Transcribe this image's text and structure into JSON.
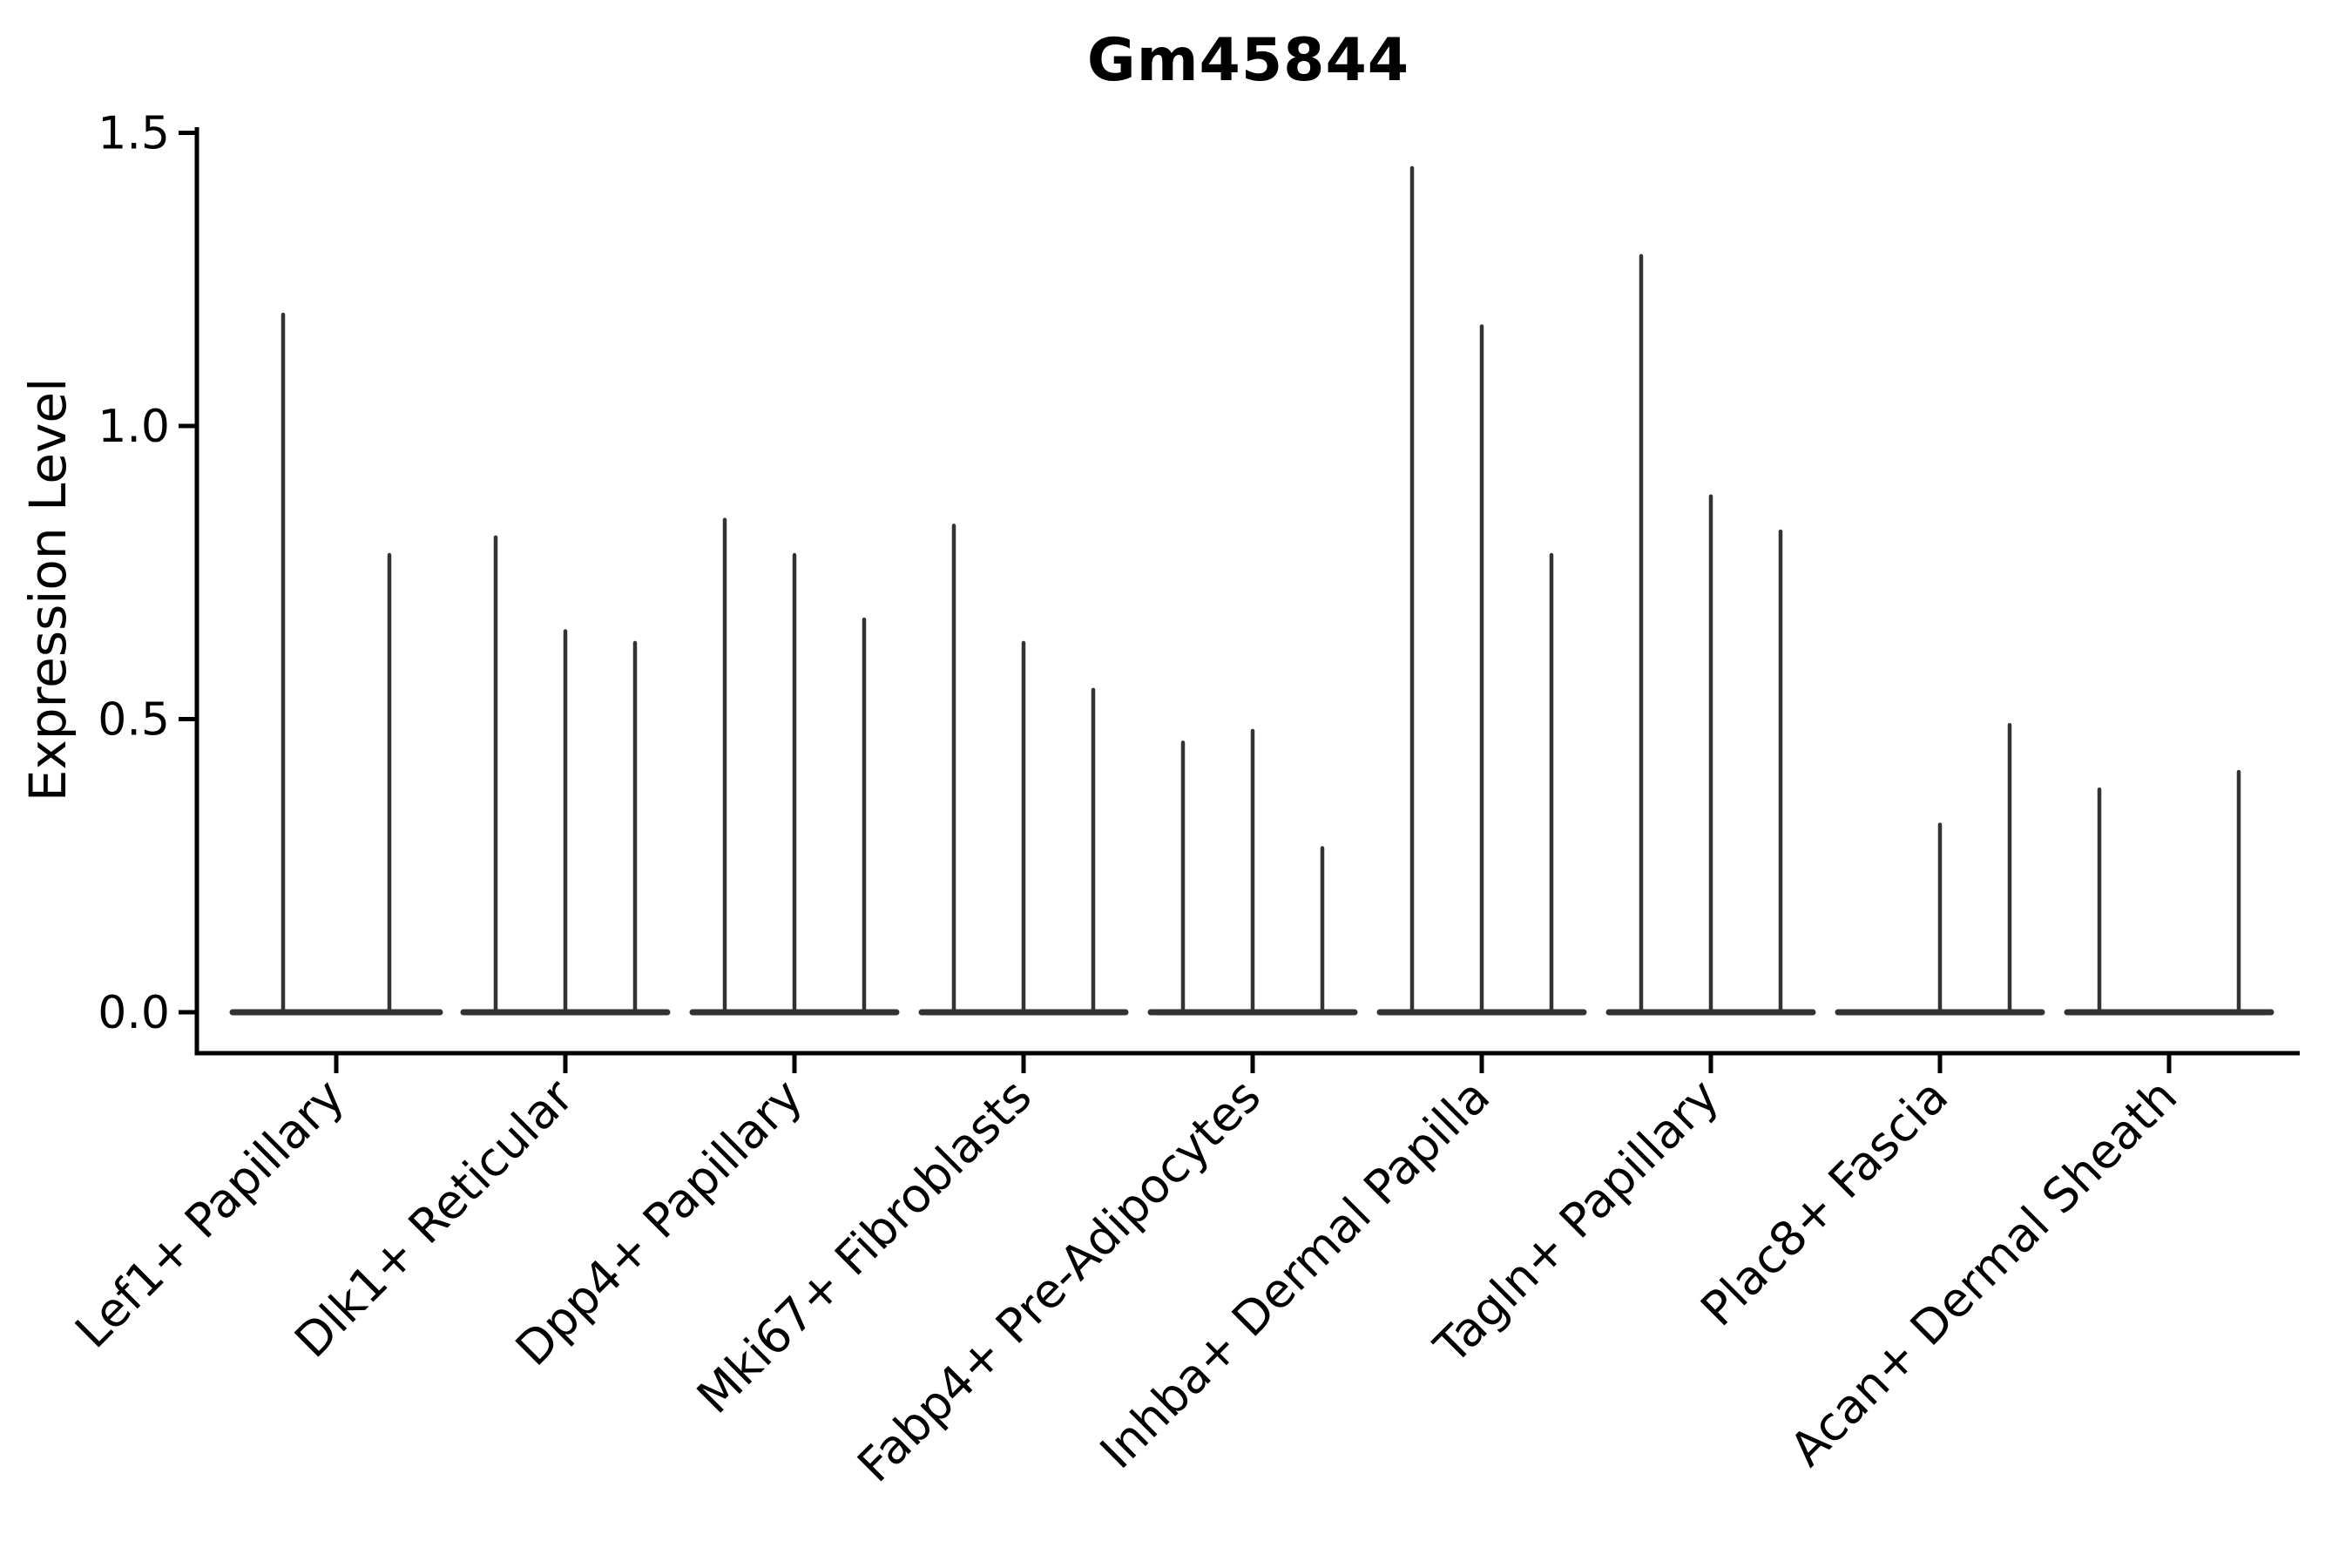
{
  "title": "Gm45844",
  "ylabel": "Expression Level",
  "colors": {
    "background": "#ffffff",
    "axis": "#000000",
    "text": "#000000",
    "violin": "#333333"
  },
  "chart_data": {
    "type": "violin",
    "title": "Gm45844",
    "xlabel": "",
    "ylabel": "Expression Level",
    "ylim": [
      -0.07,
      1.51
    ],
    "yticks": [
      0,
      0.5,
      1.0,
      1.5
    ],
    "ytick_labels": [
      "0.0",
      "0.5",
      "1.0",
      "1.5"
    ],
    "grid": false,
    "legend": false,
    "description": "Needle-thin violin plot of gene expression per fibroblast cluster; each category contains 2-3 violins collapsed to a baseline bulge at 0 with a thin spike to the maximum expression value.",
    "categories": [
      "Lef1+ Papillary",
      "Dlk1+ Reticular",
      "Dpp4+ Papillary",
      "Mki67+ Fibroblasts",
      "Fabp4+ Pre-Adipocytes",
      "Inhba+ Dermal Papilla",
      "Tagln+ Papillary",
      "Plac8+ Fascia",
      "Acan+ Dermal Sheath"
    ],
    "groups": [
      {
        "label": "Lef1+ Papillary",
        "violin_maxima": [
          1.19,
          0.78
        ]
      },
      {
        "label": "Dlk1+ Reticular",
        "violin_maxima": [
          0.81,
          0.65,
          0.63
        ]
      },
      {
        "label": "Dpp4+ Papillary",
        "violin_maxima": [
          0.84,
          0.78,
          0.67
        ]
      },
      {
        "label": "Mki67+ Fibroblasts",
        "violin_maxima": [
          0.83,
          0.63,
          0.55
        ]
      },
      {
        "label": "Fabp4+ Pre-Adipocytes",
        "violin_maxima": [
          0.46,
          0.48,
          0.28
        ]
      },
      {
        "label": "Inhba+ Dermal Papilla",
        "violin_maxima": [
          1.44,
          1.17,
          0.78
        ]
      },
      {
        "label": "Tagln+ Papillary",
        "violin_maxima": [
          1.29,
          0.88,
          0.82
        ]
      },
      {
        "label": "Plac8+ Fascia",
        "violin_maxima": [
          0.0,
          0.32,
          0.49
        ]
      },
      {
        "label": "Acan+ Dermal Sheath",
        "violin_maxima": [
          0.38,
          0.0,
          0.41
        ]
      }
    ]
  }
}
